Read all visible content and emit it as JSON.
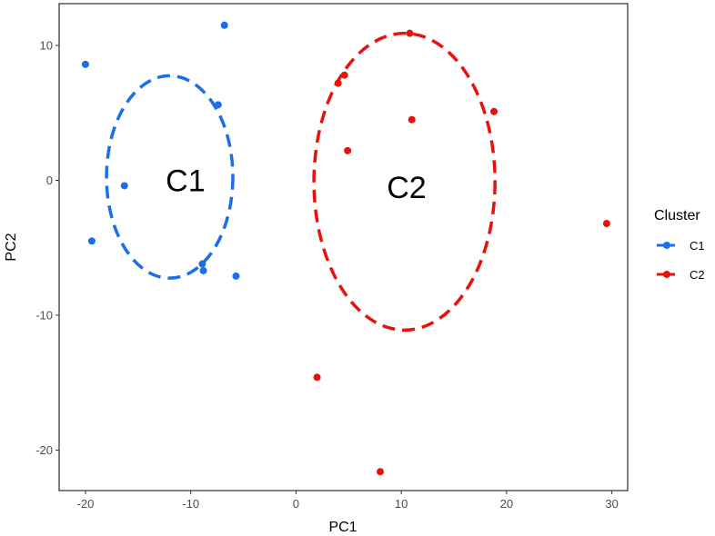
{
  "chart_data": {
    "type": "scatter",
    "xlabel": "PC1",
    "ylabel": "PC2",
    "xlim": [
      -22.5,
      31.5
    ],
    "ylim": [
      -23,
      13.1
    ],
    "x_ticks": [
      -20,
      -10,
      0,
      10,
      20,
      30
    ],
    "y_ticks": [
      -20,
      -10,
      0,
      10
    ],
    "grid": false,
    "legend": {
      "title": "Cluster",
      "position": "right"
    },
    "series": [
      {
        "name": "C1",
        "color": "#1a6fe8",
        "x": [
          -20.0,
          -16.3,
          -19.4,
          -6.8,
          -7.4,
          -8.9,
          -8.8,
          -5.7
        ],
        "y": [
          8.6,
          -0.4,
          -4.5,
          11.5,
          5.6,
          -6.2,
          -6.7,
          -7.1
        ],
        "ellipse": {
          "cx": -12.0,
          "cy": 0.25,
          "rx": 6.0,
          "ry": 7.5
        }
      },
      {
        "name": "C2",
        "color": "#e8120c",
        "x": [
          10.8,
          4.6,
          4.0,
          11.0,
          18.8,
          4.9,
          29.5,
          2.0,
          8.0
        ],
        "y": [
          10.9,
          7.8,
          7.2,
          4.5,
          5.1,
          2.2,
          -3.2,
          -14.6,
          -21.6
        ],
        "ellipse": {
          "cx": 10.3,
          "cy": -0.1,
          "rx": 8.6,
          "ry": 11.0
        }
      }
    ],
    "annotations": [
      {
        "text": "C1",
        "x": -10.5,
        "y": 0.0
      },
      {
        "text": "C2",
        "x": 10.5,
        "y": -0.5
      }
    ]
  }
}
